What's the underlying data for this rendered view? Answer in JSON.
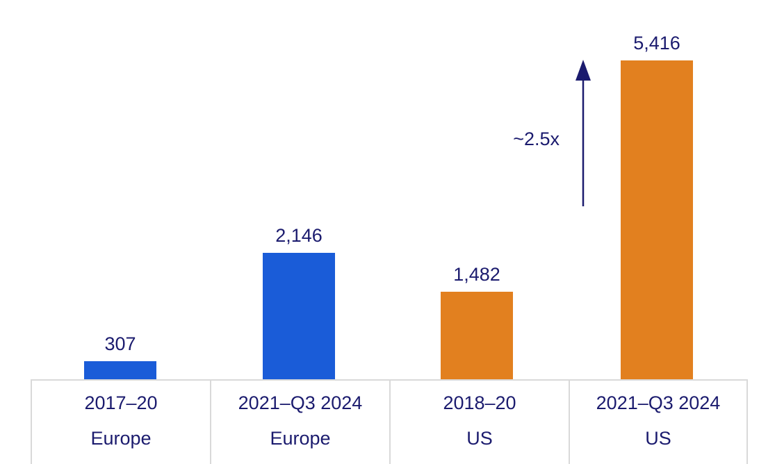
{
  "colors": {
    "europe": "#1A5CD8",
    "us": "#E2801F",
    "text_navy": "#1B1B6E",
    "axis_gray": "#D9D9D9"
  },
  "chart_data": {
    "type": "bar",
    "title": "",
    "xlabel": "",
    "ylabel": "",
    "ylim": [
      0,
      5416
    ],
    "grid": false,
    "legend": false,
    "value_labels_shown": true,
    "categories": [
      "2017–20 Europe",
      "2021–Q3 2024 Europe",
      "2018–20 US",
      "2021–Q3 2024 US"
    ],
    "bars": [
      {
        "period": "2017–20",
        "region": "Europe",
        "value": 307,
        "value_label": "307",
        "color_key": "europe"
      },
      {
        "period": "2021–Q3 2024",
        "region": "Europe",
        "value": 2146,
        "value_label": "2,146",
        "color_key": "europe"
      },
      {
        "period": "2018–20",
        "region": "US",
        "value": 1482,
        "value_label": "1,482",
        "color_key": "us"
      },
      {
        "period": "2021–Q3 2024",
        "region": "US",
        "value": 5416,
        "value_label": "5,416",
        "color_key": "us"
      }
    ],
    "annotation": {
      "label": "~2.5x",
      "arrow_direction": "up"
    }
  }
}
